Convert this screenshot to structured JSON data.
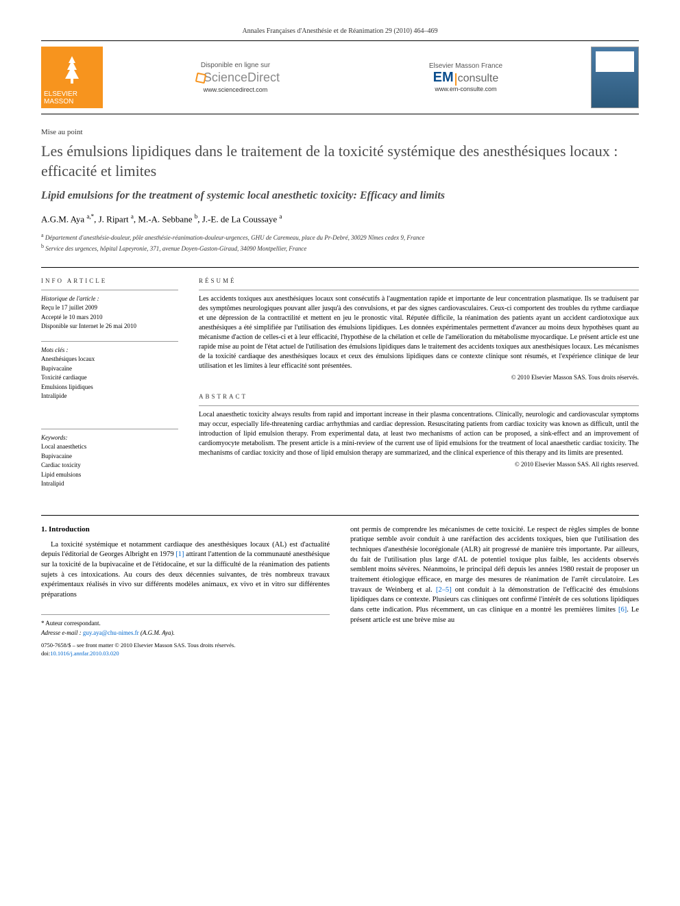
{
  "journal_header": "Annales Françaises d'Anesthésie et de Réanimation 29 (2010) 464–469",
  "banner": {
    "publisher_top": "ELSEVIER",
    "publisher_bottom": "MASSON",
    "sciencedirect": {
      "top": "Disponible en ligne sur",
      "brand": "ScienceDirect",
      "url": "www.sciencedirect.com"
    },
    "emconsulte": {
      "top": "Elsevier Masson France",
      "brand_em": "EM",
      "brand_consulte": "consulte",
      "url": "www.em-consulte.com"
    }
  },
  "article_type": "Mise au point",
  "title_fr": "Les émulsions lipidiques dans le traitement de la toxicité systémique des anesthésiques locaux : efficacité et limites",
  "title_en": "Lipid emulsions for the treatment of systemic local anesthetic toxicity: Efficacy and limits",
  "authors_html": "A.G.M. Aya <sup>a,*</sup>, J. Ripart <sup>a</sup>, M.-A. Sebbane <sup>b</sup>, J.-E. de La Coussaye <sup>a</sup>",
  "affiliations": [
    {
      "sup": "a",
      "text": "Département d'anesthésie-douleur, pôle anesthésie-réanimation-douleur-urgences, GHU de Caremeau, place du Pr-Debré, 30029 Nîmes cedex 9, France"
    },
    {
      "sup": "b",
      "text": "Service des urgences, hôpital Lapeyronie, 371, avenue Doyen-Gaston-Giraud, 34090 Montpellier, France"
    }
  ],
  "info_label": "INFO ARTICLE",
  "history": {
    "label": "Historique de l'article :",
    "received": "Reçu le 17 juillet 2009",
    "accepted": "Accepté le 10 mars 2010",
    "online": "Disponible sur Internet le 26 mai 2010"
  },
  "mots_cles": {
    "label": "Mots clés :",
    "items": [
      "Anesthésiques locaux",
      "Bupivacaïne",
      "Toxicité cardiaque",
      "Emulsions lipidiques",
      "Intralipide"
    ]
  },
  "keywords": {
    "label": "Keywords:",
    "items": [
      "Local anaesthetics",
      "Bupivacaine",
      "Cardiac toxicity",
      "Lipid emulsions",
      "Intralipid"
    ]
  },
  "resume_label": "RÉSUMÉ",
  "resume_text": "Les accidents toxiques aux anesthésiques locaux sont consécutifs à l'augmentation rapide et importante de leur concentration plasmatique. Ils se traduisent par des symptômes neurologiques pouvant aller jusqu'à des convulsions, et par des signes cardiovasculaires. Ceux-ci comportent des troubles du rythme cardiaque et une dépression de la contractilité et mettent en jeu le pronostic vital. Réputée difficile, la réanimation des patients ayant un accident cardiotoxique aux anesthésiques a été simplifiée par l'utilisation des émulsions lipidiques. Les données expérimentales permettent d'avancer au moins deux hypothèses quant au mécanisme d'action de celles-ci et à leur efficacité, l'hypothèse de la chélation et celle de l'amélioration du métabolisme myocardique. Le présent article est une rapide mise au point de l'état actuel de l'utilisation des émulsions lipidiques dans le traitement des accidents toxiques aux anesthésiques locaux. Les mécanismes de la toxicité cardiaque des anesthésiques locaux et ceux des émulsions lipidiques dans ce contexte clinique sont résumés, et l'expérience clinique de leur utilisation et les limites à leur efficacité sont présentées.",
  "resume_copyright": "© 2010 Elsevier Masson SAS. Tous droits réservés.",
  "abstract_label": "ABSTRACT",
  "abstract_text": "Local anaesthetic toxicity always results from rapid and important increase in their plasma concentrations. Clinically, neurologic and cardiovascular symptoms may occur, especially life-threatening cardiac arrhythmias and cardiac depression. Resuscitating patients from cardiac toxicity was known as difficult, until the introduction of lipid emulsion therapy. From experimental data, at least two mechanisms of action can be proposed, a sink-effect and an improvement of cardiomyocyte metabolism. The present article is a mini-review of the current use of lipid emulsions for the treatment of local anaesthetic cardiac toxicity. The mechanisms of cardiac toxicity and those of lipid emulsion therapy are summarized, and the clinical experience of this therapy and its limits are presented.",
  "abstract_copyright": "© 2010 Elsevier Masson SAS. All rights reserved.",
  "intro_heading": "1. Introduction",
  "intro_col1": "La toxicité systémique et notamment cardiaque des anesthésiques locaux (AL) est d'actualité depuis l'éditorial de Georges Albright en 1979 [1] attirant l'attention de la communauté anesthésique sur la toxicité de la bupivacaïne et de l'étidocaïne, et sur la difficulté de la réanimation des patients sujets à ces intoxications. Au cours des deux décennies suivantes, de très nombreux travaux expérimentaux réalisés in vivo sur différents modèles animaux, ex vivo et in vitro sur différentes préparations",
  "intro_col2": "ont permis de comprendre les mécanismes de cette toxicité. Le respect de règles simples de bonne pratique semble avoir conduit à une raréfaction des accidents toxiques, bien que l'utilisation des techniques d'anesthésie locorégionale (ALR) ait progressé de manière très importante. Par ailleurs, du fait de l'utilisation plus large d'AL de potentiel toxique plus faible, les accidents observés semblent moins sévères. Néanmoins, le principal défi depuis les années 1980 restait de proposer un traitement étiologique efficace, en marge des mesures de réanimation de l'arrêt circulatoire. Les travaux de Weinberg et al. [2–5] ont conduit à la démonstration de l'efficacité des émulsions lipidiques dans ce contexte. Plusieurs cas cliniques ont confirmé l'intérêt de ces solutions lipidiques dans cette indication. Plus récemment, un cas clinique en a montré les premières limites [6]. Le présent article est une brève mise au",
  "footer": {
    "corr": "* Auteur correspondant.",
    "email_label": "Adresse e-mail :",
    "email": "guy.aya@chu-nimes.fr",
    "email_name": "(A.G.M. Aya).",
    "issn": "0750-7658/$ – see front matter © 2010 Elsevier Masson SAS. Tous droits réservés.",
    "doi_label": "doi:",
    "doi": "10.1016/j.annfar.2010.03.020"
  },
  "refs": {
    "r1": "[1]",
    "r25": "[2–5]",
    "r6": "[6]"
  }
}
